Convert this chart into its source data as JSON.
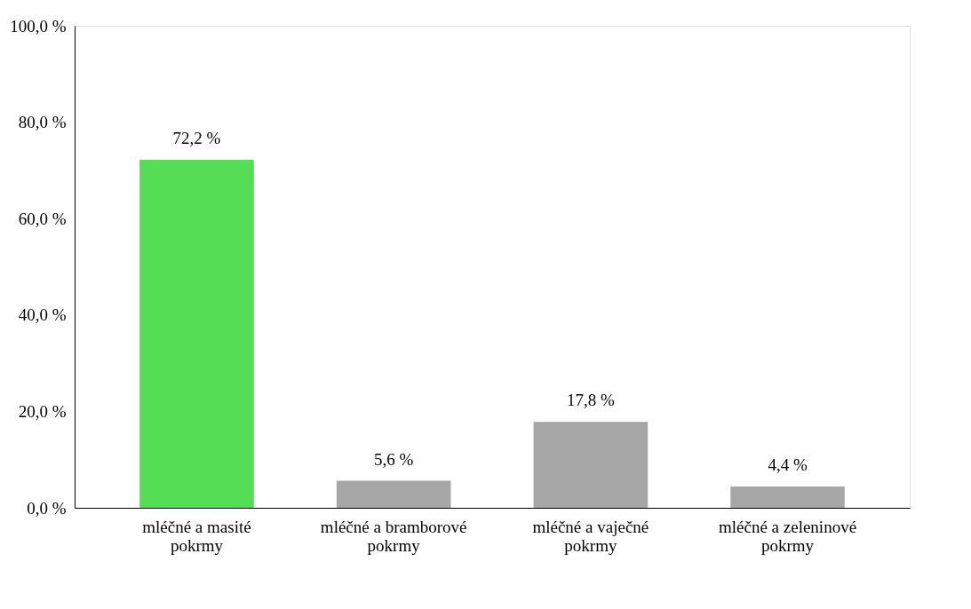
{
  "chart_data": {
    "type": "bar",
    "categories": [
      "mléčné a masité pokrmy",
      "mléčné a bramborové pokrmy",
      "mléčné a vaječné pokrmy",
      "mléčné a zeleninové pokrmy"
    ],
    "values": [
      72.2,
      5.6,
      17.8,
      4.4
    ],
    "colors": [
      "#55dd55",
      "#a6a6a6",
      "#a6a6a6",
      "#a6a6a6"
    ],
    "value_labels": [
      "72,2 %",
      "5,6 %",
      "17,8 %",
      "4,4 %"
    ],
    "ylim": [
      0,
      100
    ],
    "yticks": [
      {
        "value": 0,
        "label": "0,0 %"
      },
      {
        "value": 20,
        "label": "20,0 %"
      },
      {
        "value": 40,
        "label": "40,0 %"
      },
      {
        "value": 60,
        "label": "60,0 %"
      },
      {
        "value": 80,
        "label": "80,0 %"
      },
      {
        "value": 100,
        "label": "100,0 %"
      }
    ],
    "grid": false
  }
}
